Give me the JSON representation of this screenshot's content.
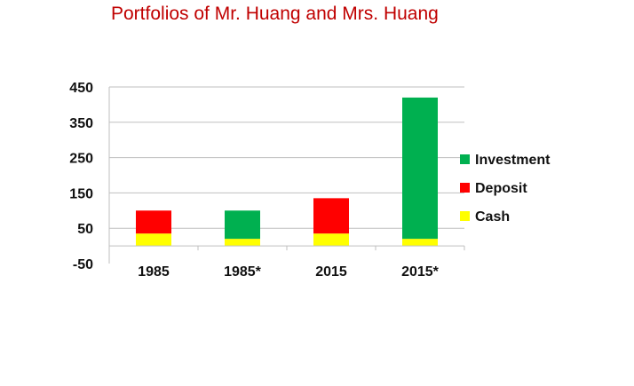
{
  "chart_data": {
    "type": "bar",
    "stacked": true,
    "title": "Portfolios of Mr. Huang and Mrs. Huang",
    "categories": [
      "1985",
      "1985*",
      "2015",
      "2015*"
    ],
    "series": [
      {
        "name": "Cash",
        "color": "#ffff00",
        "values": [
          35,
          20,
          35,
          20
        ]
      },
      {
        "name": "Deposit",
        "color": "#ff0000",
        "values": [
          65,
          0,
          100,
          0
        ]
      },
      {
        "name": "Investment",
        "color": "#00b050",
        "values": [
          0,
          80,
          0,
          400
        ]
      }
    ],
    "ylim": [
      -50,
      450
    ],
    "yticks": [
      -50,
      50,
      150,
      250,
      350,
      450
    ],
    "grid": true,
    "legend_position": "right",
    "xlabel": "",
    "ylabel": ""
  }
}
